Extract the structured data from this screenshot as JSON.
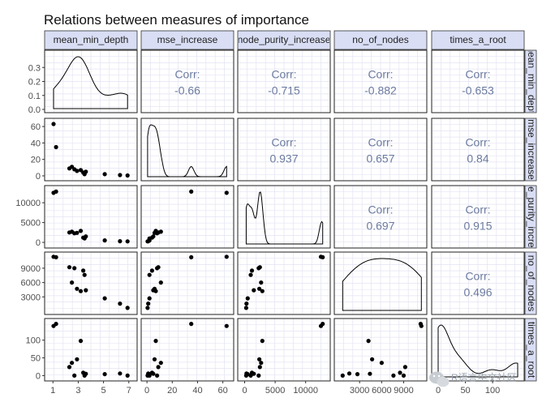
{
  "chart_data": {
    "type": "scatter",
    "title": "Relations between measures of importance",
    "variables": [
      "mean_min_depth",
      "mse_increase",
      "node_purity_increase",
      "no_of_nodes",
      "times_a_root"
    ],
    "column_strip_labels": [
      "mean_min_depth",
      "mse_increase",
      "node_purity_increase",
      "no_of_nodes",
      "times_a_root"
    ],
    "row_strip_labels": [
      "mean_min_depth",
      "mse_increase",
      "node_purity_increase",
      "no_of_nodes",
      "times_a_root"
    ],
    "corr_label": "Corr:",
    "correlations": [
      {
        "row": 0,
        "col": 1,
        "value": "-0.66"
      },
      {
        "row": 0,
        "col": 2,
        "value": "-0.715"
      },
      {
        "row": 0,
        "col": 3,
        "value": "-0.882"
      },
      {
        "row": 0,
        "col": 4,
        "value": "-0.653"
      },
      {
        "row": 1,
        "col": 2,
        "value": "0.937"
      },
      {
        "row": 1,
        "col": 3,
        "value": "0.657"
      },
      {
        "row": 1,
        "col": 4,
        "value": "0.84"
      },
      {
        "row": 2,
        "col": 3,
        "value": "0.697"
      },
      {
        "row": 2,
        "col": 4,
        "value": "0.915"
      },
      {
        "row": 3,
        "col": 4,
        "value": "0.496"
      }
    ],
    "observations": [
      {
        "mean_min_depth": 1.05,
        "mse_increase": 63,
        "node_purity_increase": 12500,
        "no_of_nodes": 11400,
        "times_a_root": 140
      },
      {
        "mean_min_depth": 1.25,
        "mse_increase": 35,
        "node_purity_increase": 12800,
        "no_of_nodes": 11300,
        "times_a_root": 146
      },
      {
        "mean_min_depth": 2.3,
        "mse_increase": 9,
        "node_purity_increase": 2500,
        "no_of_nodes": 9200,
        "times_a_root": 24
      },
      {
        "mean_min_depth": 2.5,
        "mse_increase": 11,
        "node_purity_increase": 2700,
        "no_of_nodes": 6000,
        "times_a_root": 36
      },
      {
        "mean_min_depth": 2.7,
        "mse_increase": 8,
        "node_purity_increase": 2300,
        "no_of_nodes": 9000,
        "times_a_root": 0
      },
      {
        "mean_min_depth": 2.9,
        "mse_increase": 6,
        "node_purity_increase": 2400,
        "no_of_nodes": 4700,
        "times_a_root": 46
      },
      {
        "mean_min_depth": 3.2,
        "mse_increase": 7,
        "node_purity_increase": 2900,
        "no_of_nodes": 4200,
        "times_a_root": 98
      },
      {
        "mean_min_depth": 3.4,
        "mse_increase": 4,
        "node_purity_increase": 1200,
        "no_of_nodes": 8500,
        "times_a_root": 8
      },
      {
        "mean_min_depth": 3.5,
        "mse_increase": 2,
        "node_purity_increase": 1000,
        "no_of_nodes": 7600,
        "times_a_root": 0
      },
      {
        "mean_min_depth": 3.6,
        "mse_increase": 5,
        "node_purity_increase": 1500,
        "no_of_nodes": 4400,
        "times_a_root": 5
      },
      {
        "mean_min_depth": 5.1,
        "mse_increase": 2,
        "node_purity_increase": 500,
        "no_of_nodes": 2700,
        "times_a_root": 4
      },
      {
        "mean_min_depth": 6.3,
        "mse_increase": 1,
        "node_purity_increase": 300,
        "no_of_nodes": 1600,
        "times_a_root": 6
      },
      {
        "mean_min_depth": 6.9,
        "mse_increase": 0.5,
        "node_purity_increase": 250,
        "no_of_nodes": 700,
        "times_a_root": 0
      }
    ],
    "axes": {
      "mean_min_depth": {
        "range": [
          0.6,
          7.4
        ],
        "ticks": [
          "3",
          "5",
          "7"
        ],
        "tick_values": [
          3,
          5,
          7
        ],
        "minor_ticks": [
          1
        ],
        "minor_labels": [
          "1"
        ]
      },
      "mse_increase": {
        "range": [
          -2,
          66
        ],
        "ticks": [
          "0",
          "20",
          "40",
          "60"
        ],
        "tick_values": [
          0,
          20,
          40,
          60
        ]
      },
      "node_purity_increase": {
        "range": [
          -600,
          13500
        ],
        "ticks": [
          "0",
          "5000",
          "10000"
        ],
        "tick_values": [
          0,
          5000,
          10000
        ]
      },
      "no_of_nodes": {
        "range": [
          0,
          11700
        ],
        "ticks": [
          "3000",
          "6000",
          "9000"
        ],
        "tick_values": [
          3000,
          6000,
          9000
        ]
      },
      "times_a_root": {
        "range": [
          -6,
          152
        ],
        "ticks": [
          "0",
          "50",
          "100"
        ],
        "tick_values": [
          0,
          50,
          100
        ]
      }
    },
    "density_axis_mean_min_depth": {
      "range": [
        0,
        0.4
      ],
      "ticks": [
        "0.0",
        "0.1",
        "0.2",
        "0.3"
      ],
      "tick_values": [
        0,
        0.1,
        0.2,
        0.3
      ]
    },
    "row_axis_ticks": {
      "mse_increase": [
        "0",
        "20",
        "40",
        "60"
      ],
      "node_purity_increase": [
        "0",
        "5000",
        "10000"
      ],
      "no_of_nodes": [
        "3000",
        "6000",
        "9000"
      ],
      "times_a_root": [
        "0",
        "50",
        "100"
      ]
    },
    "bottom_axis_ticks": {
      "mean_min_depth": [
        "1",
        "3",
        "5",
        "7"
      ],
      "mse_increase": [
        "0",
        "20",
        "40",
        "60"
      ],
      "node_purity_increase": [
        "0",
        "5000",
        "10000"
      ],
      "no_of_nodes": [
        "3000",
        "6000",
        "9000"
      ],
      "times_a_root": [
        "0",
        "50",
        "100"
      ]
    },
    "grid": true,
    "colors": {
      "strip_fill": "#d9def5",
      "panel_border": "#222222",
      "grid": "#e3e3f3",
      "point": "#000000",
      "corr_text": "#6b7a9e"
    }
  },
  "watermark": {
    "text": "R语言中文社区"
  }
}
